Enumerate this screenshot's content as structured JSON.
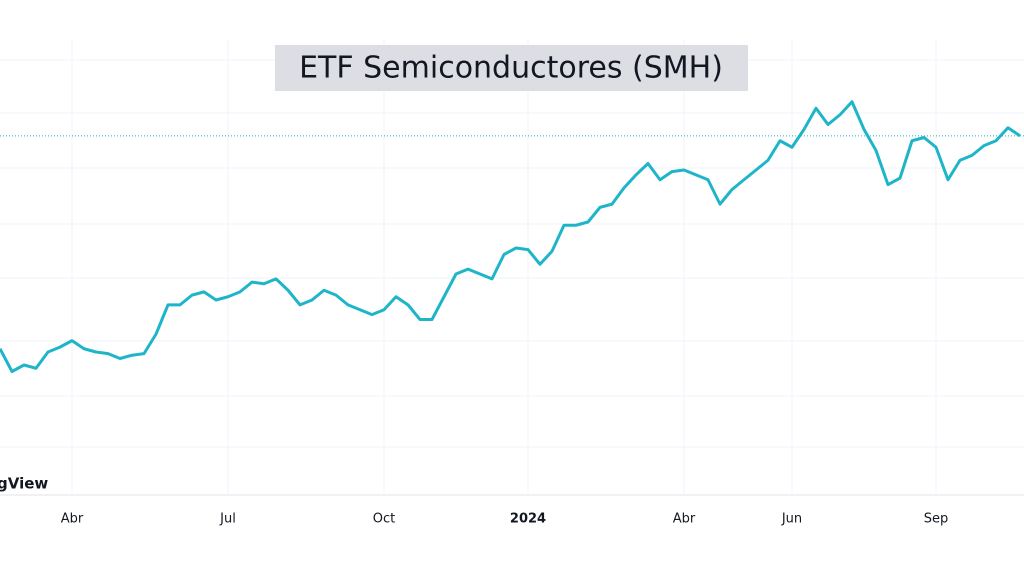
{
  "chart_data": {
    "type": "line",
    "title": "ETF Semiconductores (SMH)",
    "watermark": "gView",
    "categories": [
      null,
      null,
      null,
      null,
      null,
      null,
      "Abr",
      null,
      null,
      null,
      null,
      null,
      null,
      null,
      null,
      null,
      null,
      null,
      null,
      "Jul",
      null,
      null,
      null,
      null,
      null,
      null,
      null,
      null,
      null,
      null,
      null,
      null,
      "Oct",
      null,
      null,
      null,
      null,
      null,
      null,
      null,
      null,
      null,
      null,
      null,
      "2024",
      null,
      null,
      null,
      null,
      null,
      null,
      null,
      null,
      null,
      null,
      null,
      null,
      "Abr",
      null,
      null,
      null,
      null,
      null,
      null,
      null,
      null,
      "Jun",
      null,
      null,
      null,
      null,
      null,
      null,
      null,
      null,
      null,
      null,
      null,
      "Sep",
      null,
      null,
      null,
      null,
      null,
      null,
      null
    ],
    "series": [
      {
        "name": "SMH",
        "color": "#1fb5c9",
        "values": [
          130,
          116,
          120,
          118,
          128,
          131,
          135,
          130,
          128,
          127,
          124,
          126,
          127,
          139,
          157,
          157,
          163,
          165,
          160,
          162,
          165,
          171,
          170,
          173,
          166,
          157,
          160,
          166,
          163,
          157,
          154,
          151,
          154,
          162,
          157,
          148,
          148,
          162,
          176,
          179,
          176,
          173,
          188,
          192,
          191,
          182,
          190,
          206,
          206,
          208,
          217,
          219,
          229,
          237,
          244,
          234,
          239,
          240,
          237,
          234,
          219,
          228,
          234,
          240,
          246,
          258,
          254,
          265,
          278,
          268,
          274,
          282,
          265,
          252,
          231,
          235,
          258,
          260,
          254,
          234,
          246,
          249,
          255,
          258,
          266,
          261
        ]
      }
    ],
    "ylim": [
      40,
      320
    ],
    "grid": true
  }
}
